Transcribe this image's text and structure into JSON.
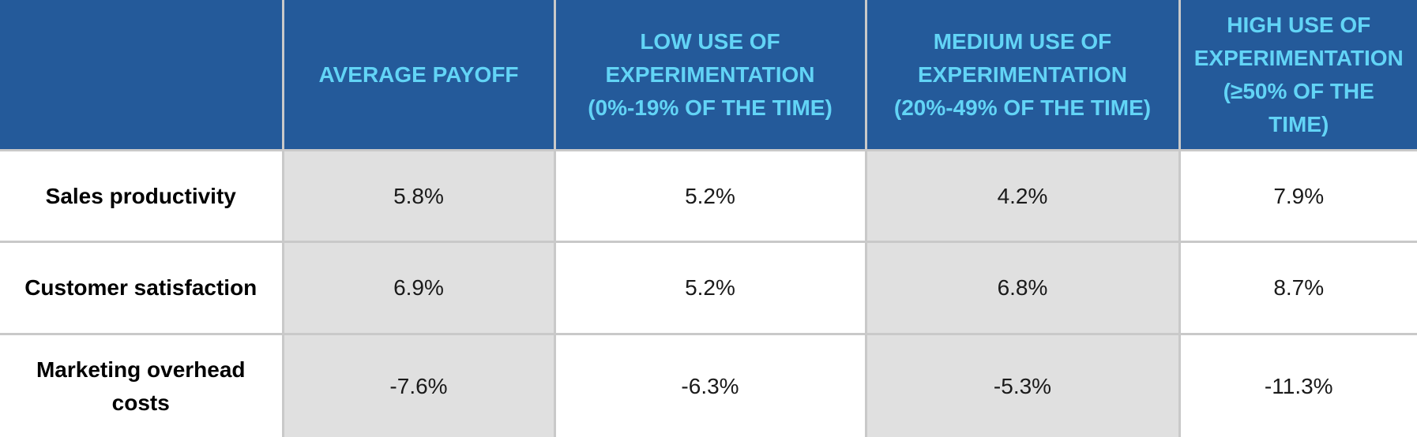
{
  "table": {
    "header": [
      "AVERAGE PAYOFF",
      "LOW USE OF EXPERIMENTATION (0%-19% OF THE TIME)",
      "MEDIUM USE OF EXPERIMENTATION (20%-49% OF THE TIME)",
      "HIGH USE OF EXPERIMENTATION (≥50% OF THE TIME)"
    ],
    "rows": [
      {
        "label": "Sales productivity",
        "cells": [
          "5.8%",
          "5.2%",
          "4.2%",
          "7.9%"
        ]
      },
      {
        "label": "Customer satisfaction",
        "cells": [
          "6.9%",
          "5.2%",
          "6.8%",
          "8.7%"
        ]
      },
      {
        "label": "Marketing overhead costs",
        "cells": [
          "-7.6%",
          "-6.3%",
          "-5.3%",
          "-11.3%"
        ]
      }
    ]
  }
}
